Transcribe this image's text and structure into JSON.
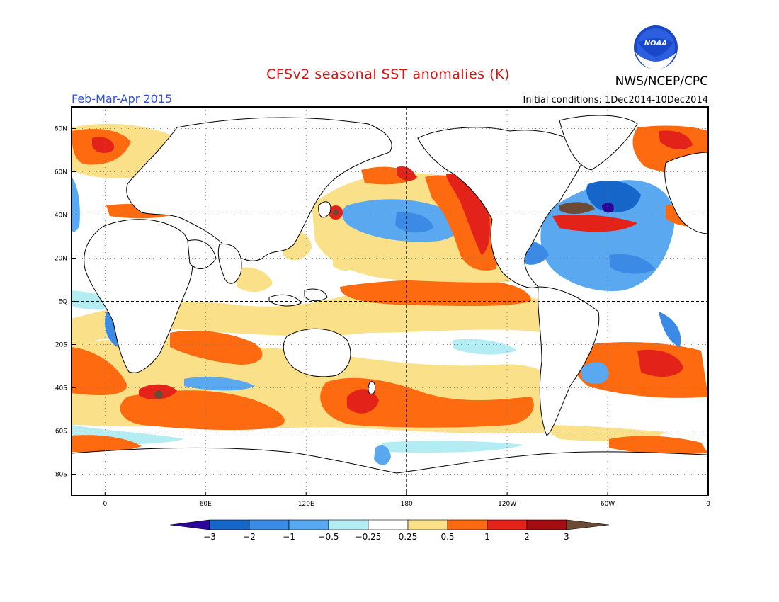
{
  "header": {
    "title": "CFSv2 seasonal SST anomalies (K)",
    "period": "Feb-Mar-Apr 2015",
    "initial_conditions": "Initial conditions: 1Dec2014-10Dec2014",
    "agency": "NWS/NCEP/CPC",
    "logo_text": "NOAA"
  },
  "map": {
    "projection": "cylindrical equidistant",
    "lon_range": [
      -20,
      360
    ],
    "lat_range": [
      -90,
      90
    ],
    "lat_ticks": [
      {
        "value": 80,
        "label": "80N"
      },
      {
        "value": 60,
        "label": "60N"
      },
      {
        "value": 40,
        "label": "40N"
      },
      {
        "value": 20,
        "label": "20N"
      },
      {
        "value": 0,
        "label": "EQ"
      },
      {
        "value": -20,
        "label": "20S"
      },
      {
        "value": -40,
        "label": "40S"
      },
      {
        "value": -60,
        "label": "60S"
      },
      {
        "value": -80,
        "label": "80S"
      }
    ],
    "lon_ticks": [
      {
        "value": 0,
        "label": "0"
      },
      {
        "value": 60,
        "label": "60E"
      },
      {
        "value": 120,
        "label": "120E"
      },
      {
        "value": 180,
        "label": "180"
      },
      {
        "value": 240,
        "label": "120W"
      },
      {
        "value": 300,
        "label": "60W"
      },
      {
        "value": 360,
        "label": "0"
      }
    ],
    "grid": "dotted"
  },
  "colorbar": {
    "labels": [
      "-3",
      "-2",
      "-1",
      "-0.5",
      "-0.25",
      "0.25",
      "0.5",
      "1",
      "2",
      "3"
    ],
    "colors": [
      "#2c0599",
      "#1566c8",
      "#3a8ae6",
      "#5aa8f0",
      "#b4ecf4",
      "#ffffff",
      "#fbe08a",
      "#fd6a10",
      "#e3231a",
      "#a50d10",
      "#6b4a36"
    ]
  },
  "colors": {
    "title": "#e01010",
    "period": "#3050e0",
    "land": "#ffffff",
    "ocean_neutral": "#ffffff"
  }
}
